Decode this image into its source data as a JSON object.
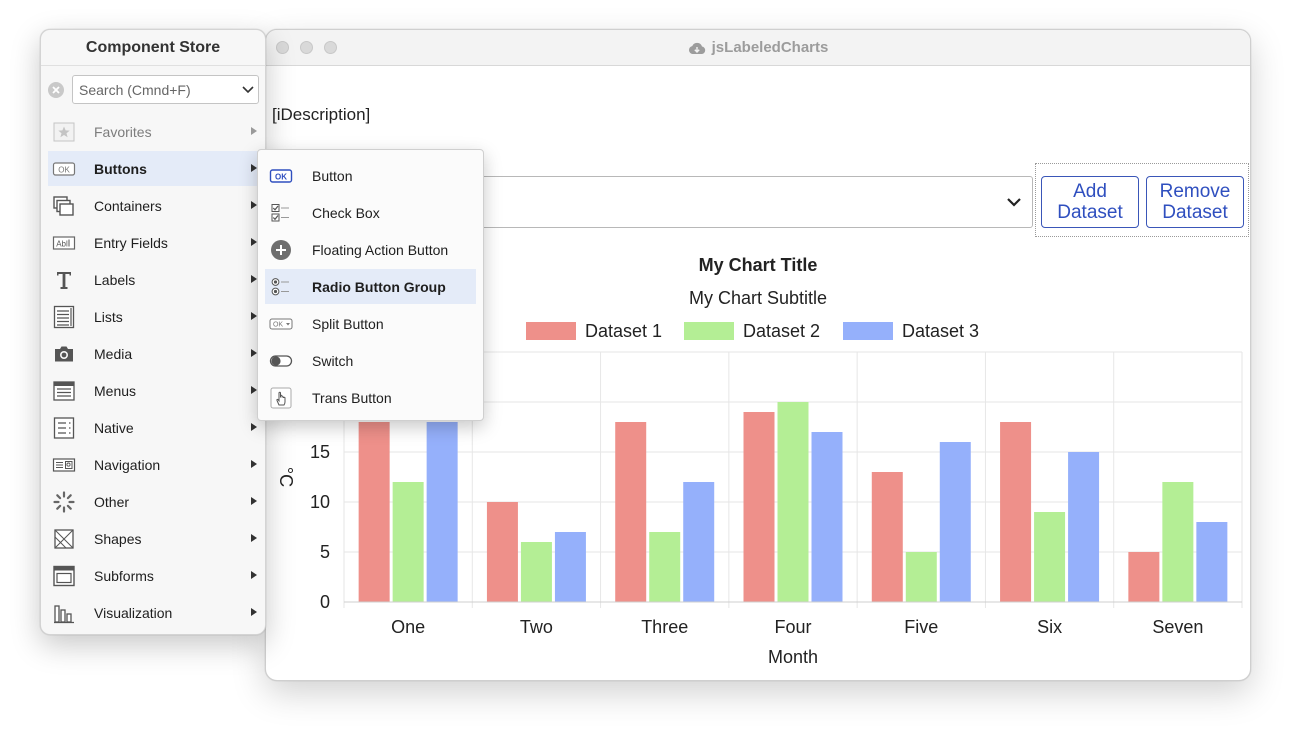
{
  "window": {
    "title": "jsLabeledCharts",
    "description": "[iDescription]",
    "dataset_select_value": "",
    "add_dataset_label": "Add Dataset",
    "remove_dataset_label": "Remove Dataset"
  },
  "store": {
    "title": "Component Store",
    "search_placeholder": "Search (Cmnd+F)",
    "categories": [
      {
        "label": "Favorites",
        "icon": "star-icon"
      },
      {
        "label": "Buttons",
        "icon": "ok-button-icon"
      },
      {
        "label": "Containers",
        "icon": "containers-icon"
      },
      {
        "label": "Entry Fields",
        "icon": "entry-field-icon"
      },
      {
        "label": "Labels",
        "icon": "text-t-icon"
      },
      {
        "label": "Lists",
        "icon": "list-icon"
      },
      {
        "label": "Media",
        "icon": "camera-icon"
      },
      {
        "label": "Menus",
        "icon": "menu-icon"
      },
      {
        "label": "Native",
        "icon": "native-icon"
      },
      {
        "label": "Navigation",
        "icon": "navigation-icon"
      },
      {
        "label": "Other",
        "icon": "spinner-icon"
      },
      {
        "label": "Shapes",
        "icon": "shapes-icon"
      },
      {
        "label": "Subforms",
        "icon": "subform-icon"
      },
      {
        "label": "Visualization",
        "icon": "bar-chart-icon"
      }
    ],
    "selected_category": "Buttons"
  },
  "submenu": {
    "items": [
      {
        "label": "Button",
        "icon": "ok-button-icon"
      },
      {
        "label": "Check Box",
        "icon": "checkbox-icon"
      },
      {
        "label": "Floating Action Button",
        "icon": "plus-circle-icon"
      },
      {
        "label": "Radio Button Group",
        "icon": "radio-group-icon"
      },
      {
        "label": "Split Button",
        "icon": "split-button-icon"
      },
      {
        "label": "Switch",
        "icon": "switch-icon"
      },
      {
        "label": "Trans Button",
        "icon": "hand-pointer-icon"
      }
    ],
    "selected_item": "Radio Button Group"
  },
  "chart_data": {
    "type": "bar",
    "title": "My Chart Title",
    "subtitle": "My Chart Subtitle",
    "xlabel": "Month",
    "ylabel": "°C",
    "categories": [
      "One",
      "Two",
      "Three",
      "Four",
      "Five",
      "Six",
      "Seven"
    ],
    "series": [
      {
        "name": "Dataset 1",
        "color": "#ee908a",
        "values": [
          18,
          10,
          18,
          19,
          13,
          18,
          5
        ]
      },
      {
        "name": "Dataset 2",
        "color": "#b4ee95",
        "values": [
          12,
          6,
          7,
          20,
          5,
          9,
          12
        ]
      },
      {
        "name": "Dataset 3",
        "color": "#95b0fb",
        "values": [
          18,
          7,
          12,
          17,
          16,
          15,
          8
        ]
      }
    ],
    "yticks": [
      "0",
      "5",
      "10",
      "15"
    ],
    "ylim": [
      0,
      25
    ],
    "grid": true,
    "legend_position": "top"
  }
}
